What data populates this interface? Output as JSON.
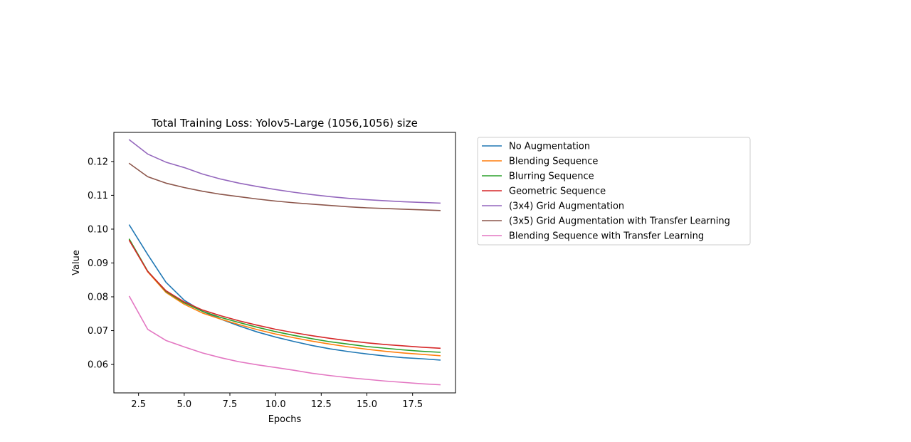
{
  "chart_data": {
    "type": "line",
    "title": "Total Training Loss: Yolov5-Large (1056,1056) size",
    "xlabel": "Epochs",
    "ylabel": "Value",
    "xlim": [
      1.15,
      19.85
    ],
    "ylim": [
      0.0516,
      0.1286
    ],
    "xticks": [
      2.5,
      5.0,
      7.5,
      10.0,
      12.5,
      15.0,
      17.5
    ],
    "xtick_labels": [
      "2.5",
      "5.0",
      "7.5",
      "10.0",
      "12.5",
      "15.0",
      "17.5"
    ],
    "yticks": [
      0.06,
      0.07,
      0.08,
      0.09,
      0.1,
      0.11,
      0.12
    ],
    "ytick_labels": [
      "0.06",
      "0.07",
      "0.08",
      "0.09",
      "0.10",
      "0.11",
      "0.12"
    ],
    "grid": false,
    "legend_position": "outside-right",
    "x": [
      2,
      3,
      4,
      5,
      6,
      7,
      8,
      9,
      10,
      11,
      12,
      13,
      14,
      15,
      16,
      17,
      18,
      19
    ],
    "series": [
      {
        "name": "No Augmentation",
        "color": "#1f77b4",
        "values": [
          0.1012,
          0.0925,
          0.0843,
          0.079,
          0.0757,
          0.0734,
          0.0714,
          0.0696,
          0.0681,
          0.0668,
          0.0656,
          0.0646,
          0.0638,
          0.0631,
          0.0625,
          0.062,
          0.0617,
          0.0613
        ]
      },
      {
        "name": "Blending Sequence",
        "color": "#ff7f0e",
        "values": [
          0.0968,
          0.0874,
          0.0813,
          0.0778,
          0.0752,
          0.0734,
          0.0718,
          0.0703,
          0.069,
          0.0679,
          0.0669,
          0.066,
          0.0652,
          0.0645,
          0.0639,
          0.0634,
          0.063,
          0.0626
        ]
      },
      {
        "name": "Blurring Sequence",
        "color": "#2ca02c",
        "values": [
          0.097,
          0.0876,
          0.0816,
          0.0782,
          0.0757,
          0.0739,
          0.0724,
          0.071,
          0.0697,
          0.0686,
          0.0676,
          0.0667,
          0.066,
          0.0653,
          0.0648,
          0.0643,
          0.0639,
          0.0636
        ]
      },
      {
        "name": "Geometric Sequence",
        "color": "#d62728",
        "values": [
          0.0966,
          0.0875,
          0.0818,
          0.0785,
          0.0761,
          0.0744,
          0.0729,
          0.0716,
          0.0704,
          0.0694,
          0.0685,
          0.0677,
          0.067,
          0.0664,
          0.0659,
          0.0655,
          0.0651,
          0.0648
        ]
      },
      {
        "name": "(3x4) Grid Augmentation",
        "color": "#9467bd",
        "values": [
          0.1264,
          0.1222,
          0.1198,
          0.1182,
          0.1163,
          0.1148,
          0.1136,
          0.1126,
          0.1117,
          0.1109,
          0.1102,
          0.1096,
          0.1091,
          0.1087,
          0.1084,
          0.1081,
          0.1079,
          0.1077
        ]
      },
      {
        "name": "(3x5) Grid Augmentation with Transfer Learning",
        "color": "#8c564b",
        "values": [
          0.1194,
          0.1155,
          0.1136,
          0.1123,
          0.1112,
          0.1103,
          0.1096,
          0.1089,
          0.1083,
          0.1078,
          0.1074,
          0.107,
          0.1066,
          0.1063,
          0.1061,
          0.1059,
          0.1057,
          0.1055
        ]
      },
      {
        "name": "Blending Sequence with Transfer Learning",
        "color": "#e377c2",
        "values": [
          0.0801,
          0.0704,
          0.0671,
          0.0652,
          0.0634,
          0.062,
          0.0608,
          0.0599,
          0.0591,
          0.0583,
          0.0574,
          0.0567,
          0.0561,
          0.0556,
          0.0551,
          0.0547,
          0.0543,
          0.054
        ]
      }
    ]
  }
}
